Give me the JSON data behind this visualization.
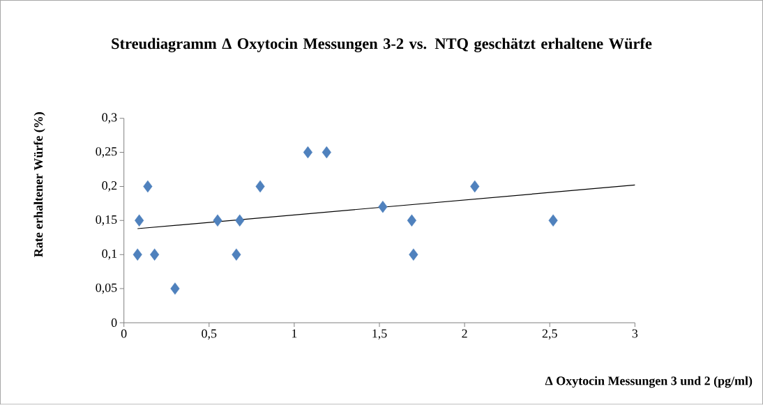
{
  "chart_data": {
    "type": "scatter",
    "title": "Streudiagramm Δ Oxytocin Messungen 3-2 vs. NTQ geschätzt erhaltene Würfe",
    "xlabel": "Δ Oxytocin Messungen 3 und 2 (pg/ml)",
    "ylabel": "Rate erhaltener Würfe (%)",
    "xlim": [
      0,
      3
    ],
    "ylim": [
      0,
      0.3
    ],
    "xticks": [
      0,
      {
        "value": 0.5,
        "label": "0,5"
      },
      1,
      {
        "value": 1.5,
        "label": "1,5"
      },
      2,
      {
        "value": 2.5,
        "label": "2,5"
      },
      3
    ],
    "yticks": [
      0,
      {
        "value": 0.05,
        "label": "0,05"
      },
      {
        "value": 0.1,
        "label": "0,1"
      },
      {
        "value": 0.15,
        "label": "0,15"
      },
      {
        "value": 0.2,
        "label": "0,2"
      },
      {
        "value": 0.25,
        "label": "0,25"
      },
      {
        "value": 0.3,
        "label": "0,3"
      }
    ],
    "marker": "diamond",
    "series": [
      {
        "color": "#4f81bd",
        "x": [
          0.08,
          0.09,
          0.14,
          0.18,
          0.3,
          0.55,
          0.66,
          0.68,
          0.8,
          1.08,
          1.19,
          1.52,
          1.69,
          1.7,
          2.06,
          2.52
        ],
        "values": [
          0.1,
          0.15,
          0.2,
          0.1,
          0.05,
          0.15,
          0.1,
          0.15,
          0.2,
          0.25,
          0.25,
          0.17,
          0.15,
          0.1,
          0.2,
          0.15
        ]
      },
      {
        "type": "line",
        "color": "#000000",
        "marker": "none",
        "x": [
          0.08,
          3
        ],
        "values": [
          0.138,
          0.202
        ]
      }
    ]
  }
}
